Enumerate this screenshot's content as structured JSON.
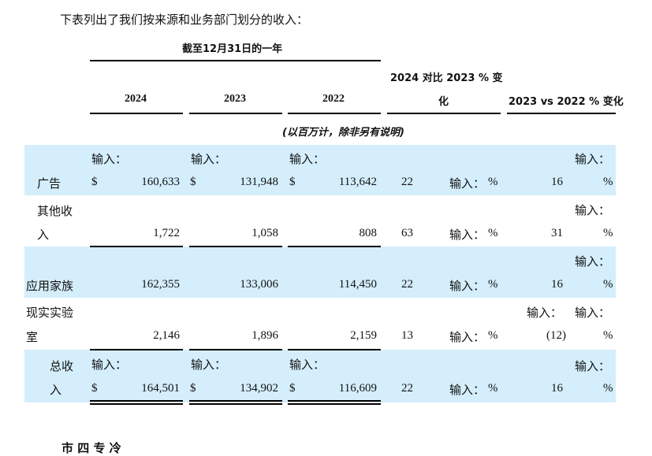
{
  "intro": "下表列出了我们按来源和业务部门划分的收入：",
  "header": {
    "group_title": "截至12月31日的一年",
    "col_2024": "2024",
    "col_2023": "2023",
    "col_2022": "2022",
    "change_24_23_line1": "2024 对比 2023 % 变",
    "change_24_23_line2": "化",
    "change_23_22": "2023 vs 2022 % 变化",
    "units_note": "(以百万计，除非另有说明)"
  },
  "labels": {
    "input_prefix": "输入：",
    "dollar": "$",
    "percent": "%"
  },
  "rows": [
    {
      "name_line1": "广告",
      "name_line2": "",
      "v2024": "160,633",
      "v2023": "131,948",
      "v2022": "113,642",
      "chg1": "22",
      "chg2": "16"
    },
    {
      "name_line1": "其他收",
      "name_line2": "入",
      "v2024": "1,722",
      "v2023": "1,058",
      "v2022": "808",
      "chg1": "63",
      "chg2": "31"
    },
    {
      "name_line1": "应用家族",
      "name_line2": "",
      "v2024": "162,355",
      "v2023": "133,006",
      "v2022": "114,450",
      "chg1": "22",
      "chg2": "16"
    },
    {
      "name_line1": "现实实验",
      "name_line2": "室",
      "v2024": "2,146",
      "v2023": "1,896",
      "v2022": "2,159",
      "chg1": "13",
      "chg2": "(12)"
    },
    {
      "name_line1": "总收",
      "name_line2": "入",
      "v2024": "164,501",
      "v2023": "134,902",
      "v2022": "116,609",
      "chg1": "22",
      "chg2": "16"
    }
  ],
  "footer_partial": "市 四 专 冷",
  "colors": {
    "band": "#d4eefc"
  }
}
